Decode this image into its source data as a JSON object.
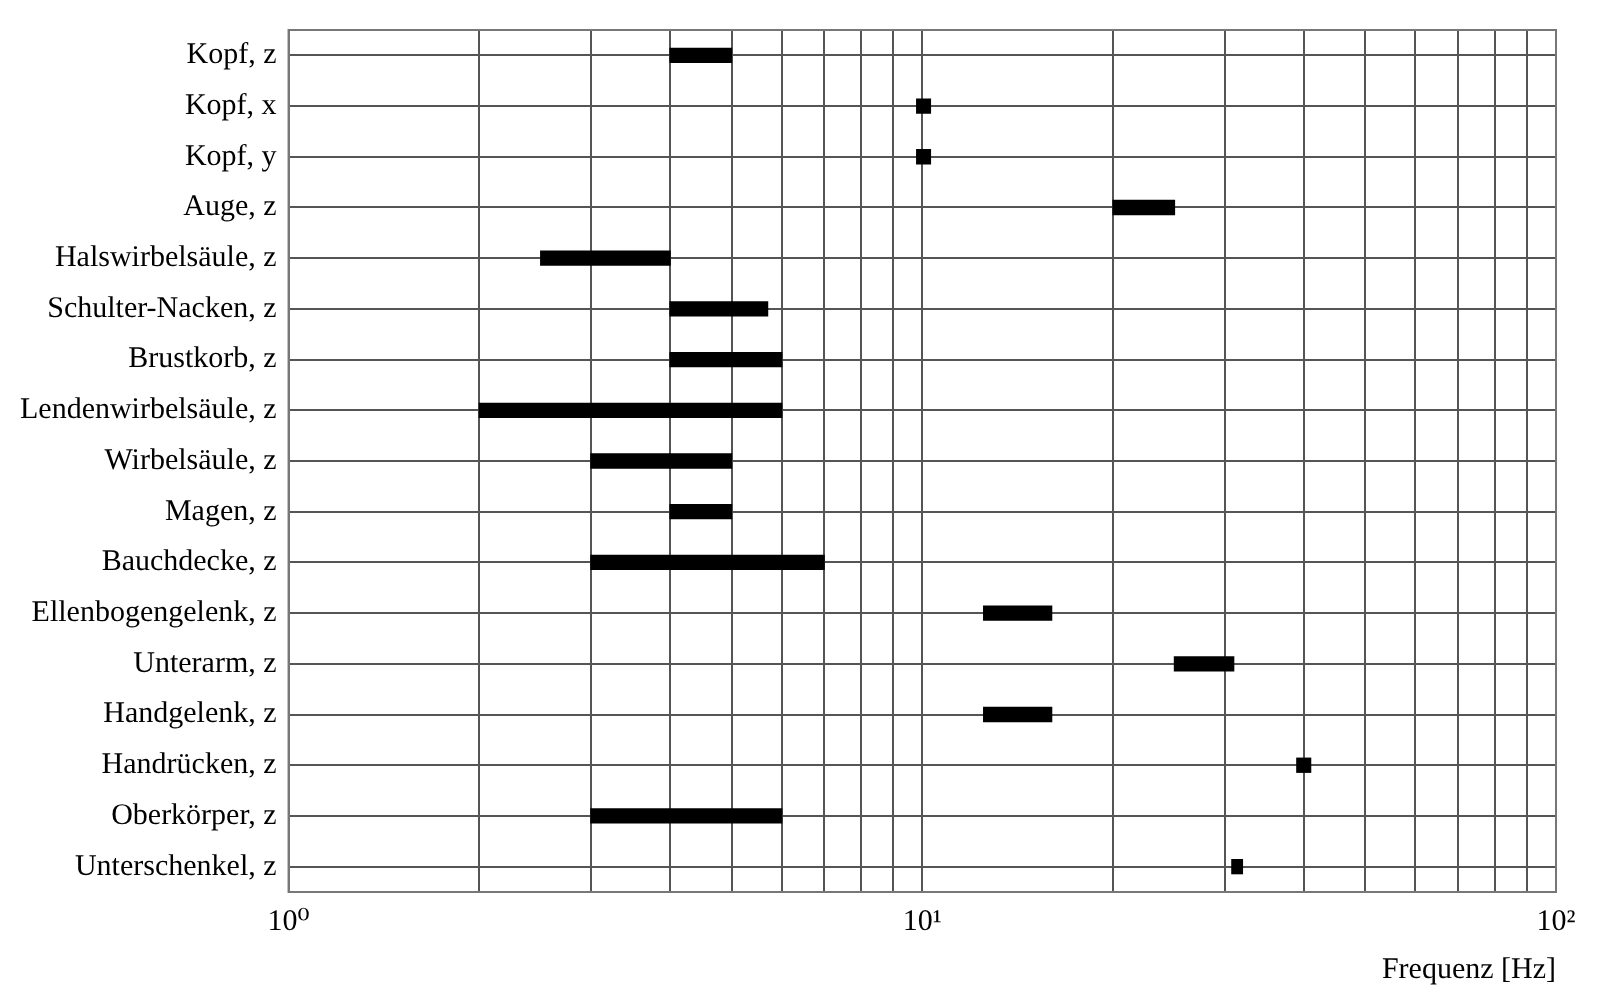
{
  "chart_data": {
    "type": "bar",
    "orientation": "horizontal",
    "xlabel": "Frequenz [Hz]",
    "categories": [
      "Kopf, z",
      "Kopf, x",
      "Kopf, y",
      "Auge, z",
      "Halswirbelsäule, z",
      "Schulter-Nacken, z",
      "Brustkorb, z",
      "Lendenwirbelsäule, z",
      "Wirbelsäule, z",
      "Magen, z",
      "Bauchdecke, z",
      "Ellenbogengelenk, z",
      "Unterarm, z",
      "Handgelenk, z",
      "Handrücken, z",
      "Oberkörper, z",
      "Unterschenkel, z"
    ],
    "base": [
      4,
      9.8,
      9.8,
      20,
      2.5,
      4,
      4,
      2,
      3,
      4,
      3,
      12.5,
      25,
      12.5,
      39,
      3,
      30.8
    ],
    "values": [
      1,
      0.5,
      0.5,
      5,
      1.5,
      1.7,
      2,
      4,
      2,
      1,
      4,
      3.5,
      6,
      3.5,
      2,
      3,
      1.2
    ],
    "color": "#000000",
    "log": "x",
    "xlim": [
      1,
      100
    ],
    "xticks": [
      {
        "value": 1,
        "label": "10⁰"
      },
      {
        "value": 2,
        "label": null
      },
      {
        "value": 3,
        "label": null
      },
      {
        "value": 4,
        "label": null
      },
      {
        "value": 5,
        "label": null
      },
      {
        "value": 6,
        "label": null
      },
      {
        "value": 7,
        "label": null
      },
      {
        "value": 8,
        "label": null
      },
      {
        "value": 9,
        "label": null
      },
      {
        "value": 10,
        "label": "10¹"
      },
      {
        "value": 20,
        "label": null
      },
      {
        "value": 30,
        "label": null
      },
      {
        "value": 40,
        "label": null
      },
      {
        "value": 50,
        "label": null
      },
      {
        "value": 60,
        "label": null
      },
      {
        "value": 70,
        "label": null
      },
      {
        "value": 80,
        "label": null
      },
      {
        "value": 90,
        "label": null
      },
      {
        "value": 100,
        "label": "10²"
      }
    ],
    "grid": true
  }
}
